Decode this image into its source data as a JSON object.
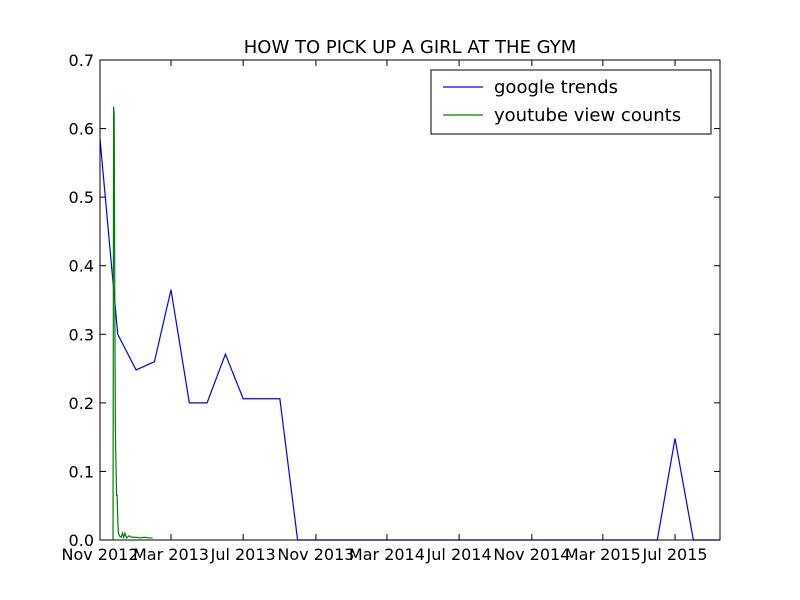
{
  "chart_data": {
    "type": "line",
    "title": "HOW TO PICK UP A GIRL AT THE GYM",
    "xlabel": "",
    "ylabel": "",
    "ylim": [
      0,
      0.7
    ],
    "xlim": [
      "2012-11-01",
      "2015-09-15"
    ],
    "grid": false,
    "legend_position": "top-right",
    "x_ticks": [
      "2012-11-01",
      "2013-03-01",
      "2013-07-01",
      "2013-11-01",
      "2014-03-01",
      "2014-07-01",
      "2014-11-01",
      "2015-03-01",
      "2015-07-01"
    ],
    "x_tick_labels": [
      "Nov 2012",
      "Mar 2013",
      "Jul 2013",
      "Nov 2013",
      "Mar 2014",
      "Jul 2014",
      "Nov 2014",
      "Mar 2015",
      "Jul 2015"
    ],
    "y_ticks": [
      0.0,
      0.1,
      0.2,
      0.3,
      0.4,
      0.5,
      0.6,
      0.7
    ],
    "y_tick_labels": [
      "0.0",
      "0.1",
      "0.2",
      "0.3",
      "0.4",
      "0.5",
      "0.6",
      "0.7"
    ],
    "series": [
      {
        "name": "google trends",
        "color": "#0000ff",
        "x": [
          "2012-11-01",
          "2012-12-01",
          "2013-01-01",
          "2013-02-01",
          "2013-03-01",
          "2013-04-01",
          "2013-05-01",
          "2013-06-01",
          "2013-07-01",
          "2013-08-01",
          "2013-09-01",
          "2013-10-01",
          "2013-11-01",
          "2015-06-01",
          "2015-07-01",
          "2015-08-01",
          "2015-09-01",
          "2015-09-15"
        ],
        "y": [
          0.585,
          0.3,
          0.248,
          0.26,
          0.365,
          0.2,
          0.2,
          0.271,
          0.206,
          0.206,
          0.206,
          0.0,
          0.0,
          0.0,
          0.148,
          0.0,
          0.0,
          0.0
        ]
      },
      {
        "name": "youtube view counts",
        "color": "#008000",
        "x": [
          "2012-11-23",
          "2012-11-24",
          "2012-11-25",
          "2012-11-26",
          "2012-11-27",
          "2012-11-28",
          "2012-11-29",
          "2012-11-30",
          "2012-12-01",
          "2012-12-02",
          "2012-12-03",
          "2012-12-04",
          "2012-12-05",
          "2012-12-07",
          "2012-12-09",
          "2012-12-11",
          "2012-12-13",
          "2012-12-16",
          "2012-12-20",
          "2012-12-25",
          "2013-01-01",
          "2013-01-08",
          "2013-01-15",
          "2013-01-22",
          "2013-01-29"
        ],
        "y": [
          0.0,
          0.632,
          0.62,
          0.35,
          0.16,
          0.11,
          0.065,
          0.065,
          0.03,
          0.012,
          0.008,
          0.006,
          0.005,
          0.004,
          0.01,
          0.004,
          0.01,
          0.003,
          0.006,
          0.004,
          0.004,
          0.003,
          0.004,
          0.003,
          0.003
        ]
      }
    ]
  }
}
